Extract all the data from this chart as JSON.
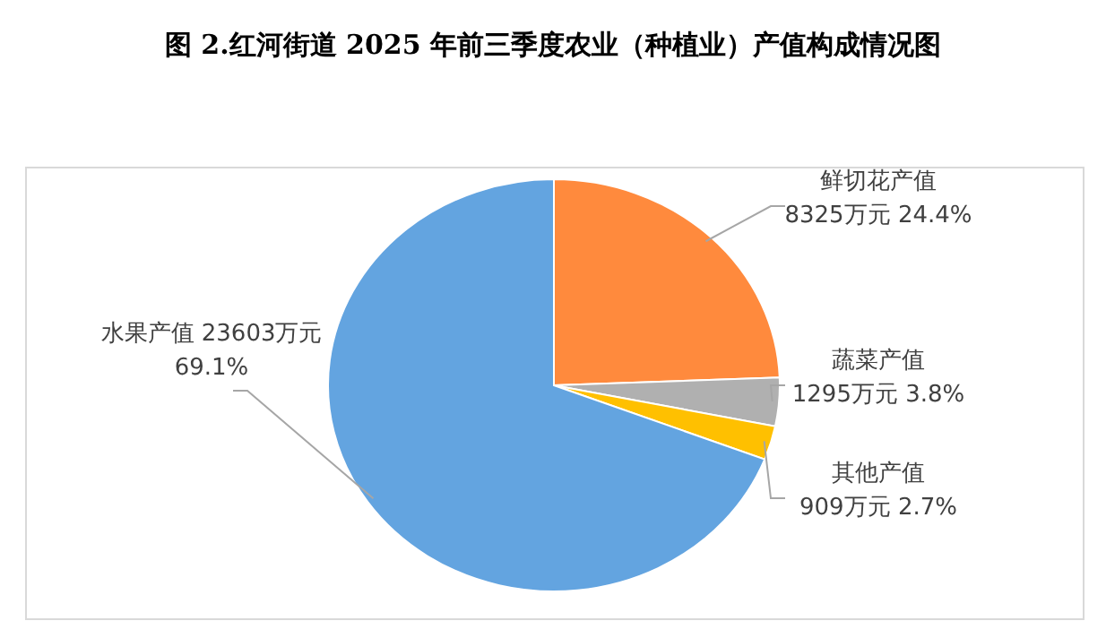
{
  "chart_data": {
    "type": "pie",
    "title": "图 2.红河街道 2025 年前三季度农业（种植业）产值构成情况图",
    "categories": [
      "鲜切花产值",
      "蔬菜产值",
      "其他产值",
      "水果产值"
    ],
    "values": [
      8325,
      1295,
      909,
      23603
    ],
    "colors": [
      "#ff8a3d",
      "#b0b0b0",
      "#ffc000",
      "#63a4e0"
    ],
    "value_labels": [
      "8325万元 24.4%",
      "1295万元 3.8%",
      "909万元 2.7%",
      "23603万元 69.1%"
    ],
    "legend": false
  }
}
